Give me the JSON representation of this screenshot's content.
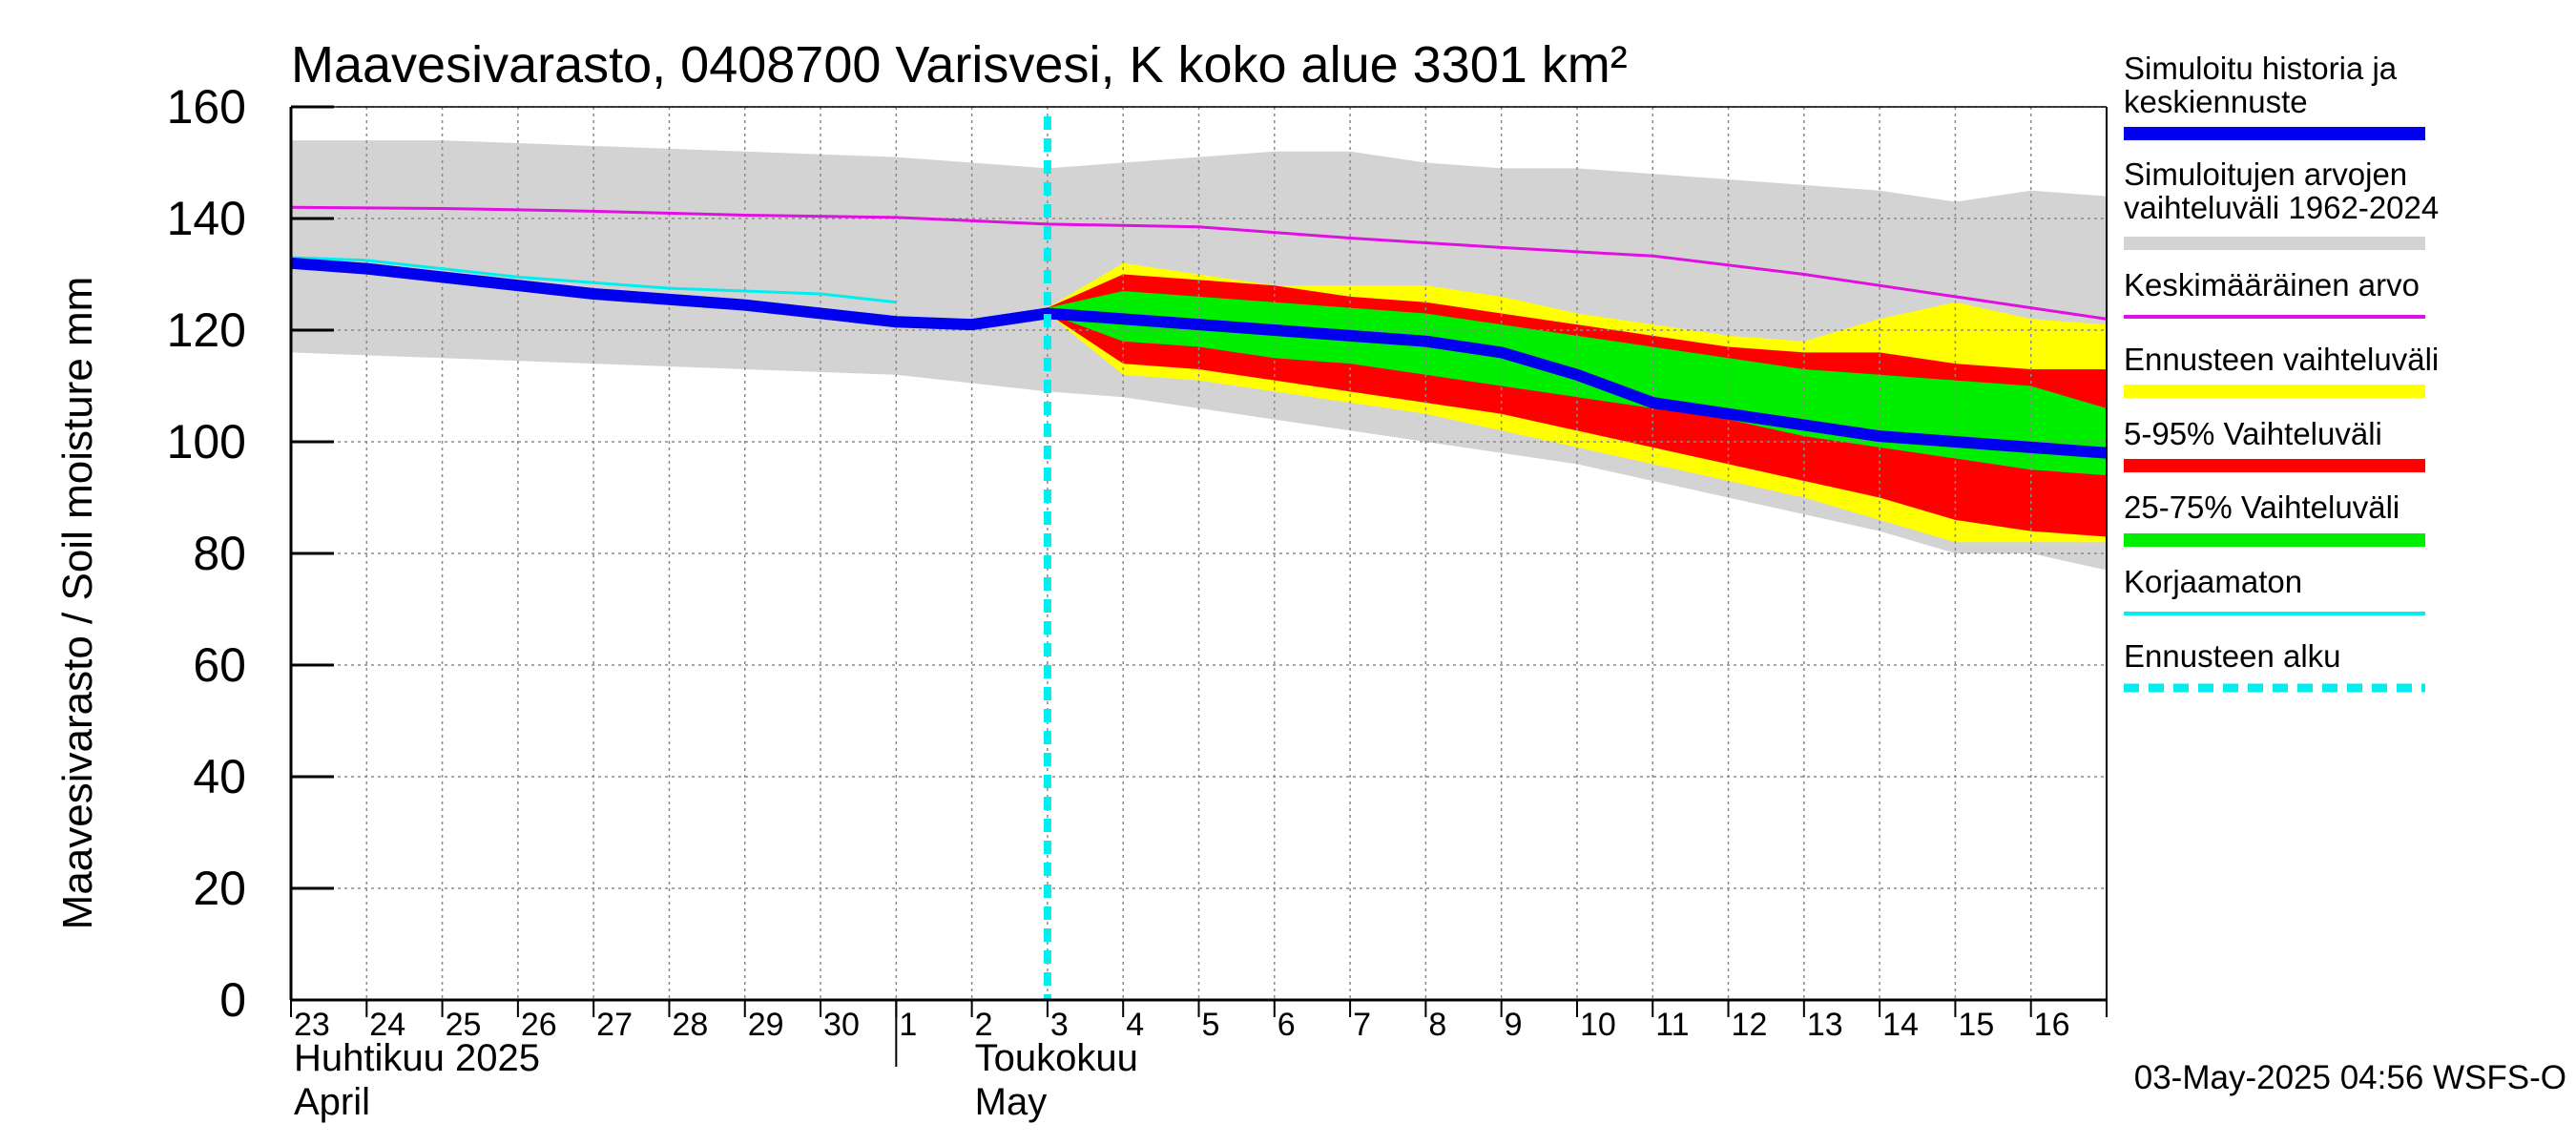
{
  "chart_data": {
    "type": "area",
    "title": "Maavesivarasto, 0408700 Varisvesi, K koko alue 3301 km²",
    "ylabel": "Maavesivarasto / Soil moisture   mm",
    "ylim": [
      0,
      160
    ],
    "yticks": [
      0,
      20,
      40,
      60,
      80,
      100,
      120,
      140,
      160
    ],
    "xlim": [
      0,
      24
    ],
    "day_labels": [
      "23",
      "24",
      "25",
      "26",
      "27",
      "28",
      "29",
      "30",
      "1",
      "2",
      "3",
      "4",
      "5",
      "6",
      "7",
      "8",
      "9",
      "10",
      "11",
      "12",
      "13",
      "14",
      "15",
      "16"
    ],
    "month_labels": [
      {
        "fi": "Huhtikuu  2025",
        "en": "April",
        "at_day": 0
      },
      {
        "fi": "Toukokuu",
        "en": "May",
        "at_day": 9
      }
    ],
    "month_divider_at": 8,
    "forecast_start": 10,
    "timestamp": "03-May-2025 04:56 WSFS-O",
    "legend": [
      {
        "label": "Simuloitu historia ja keskiennuste",
        "color": "#0000ee",
        "style": "thick"
      },
      {
        "label": "Simuloitujen arvojen vaihteluväli 1962-2024",
        "color": "#d3d3d3",
        "style": "thick"
      },
      {
        "label": "Keskimääräinen arvo",
        "color": "#e010e0",
        "style": "thin"
      },
      {
        "label": "Ennusteen vaihteluväli",
        "color": "#ffff00",
        "style": "thick"
      },
      {
        "label": "5-95% Vaihteluväli",
        "color": "#ff0000",
        "style": "thick"
      },
      {
        "label": "25-75% Vaihteluväli",
        "color": "#00ee00",
        "style": "thick"
      },
      {
        "label": "Korjaamaton",
        "color": "#00eeee",
        "style": "thin"
      },
      {
        "label": "Ennusteen alku",
        "color": "#00eeee",
        "style": "dashed"
      }
    ],
    "series": [
      {
        "name": "hist_range",
        "x": [
          0,
          2,
          4,
          6,
          8,
          10,
          11,
          12,
          13,
          14,
          15,
          16,
          17,
          18,
          19,
          20,
          21,
          22,
          23,
          24
        ],
        "upper": [
          154,
          154,
          153,
          152,
          151,
          149,
          150,
          151,
          152,
          152,
          150,
          149,
          149,
          148,
          147,
          146,
          145,
          143,
          145,
          144
        ],
        "lower": [
          116,
          115,
          114,
          113,
          112,
          109,
          108,
          106,
          104,
          102,
          100,
          98,
          96,
          93,
          90,
          87,
          84,
          80,
          80,
          77
        ]
      },
      {
        "name": "forecast_range",
        "x": [
          10,
          11,
          12,
          13,
          14,
          15,
          16,
          17,
          18,
          19,
          20,
          21,
          22,
          23,
          24
        ],
        "upper": [
          124,
          132,
          130,
          128,
          128,
          128,
          126,
          123,
          121,
          119,
          118,
          122,
          125,
          122,
          121
        ],
        "lower": [
          123,
          112,
          111,
          109,
          107,
          105,
          102,
          99,
          96,
          93,
          90,
          86,
          82,
          82,
          82
        ]
      },
      {
        "name": "p5_95",
        "x": [
          10,
          11,
          12,
          13,
          14,
          15,
          16,
          17,
          18,
          19,
          20,
          21,
          22,
          23,
          24
        ],
        "upper": [
          124,
          130,
          129,
          128,
          126,
          125,
          123,
          121,
          119,
          117,
          116,
          116,
          114,
          113,
          113
        ],
        "lower": [
          123,
          114,
          113,
          111,
          109,
          107,
          105,
          102,
          99,
          96,
          93,
          90,
          86,
          84,
          83
        ]
      },
      {
        "name": "p25_75",
        "x": [
          10,
          11,
          12,
          13,
          14,
          15,
          16,
          17,
          18,
          19,
          20,
          21,
          22,
          23,
          24
        ],
        "upper": [
          124,
          127,
          126,
          125,
          124,
          123,
          121,
          119,
          117,
          115,
          113,
          112,
          111,
          110,
          106
        ]
      },
      {
        "name": "p25_75_lower",
        "x": [
          10,
          11,
          12,
          13,
          14,
          15,
          16,
          17,
          18,
          19,
          20,
          21,
          22,
          23,
          24
        ],
        "lower": [
          123,
          118,
          117,
          115,
          114,
          112,
          110,
          108,
          106,
          104,
          101,
          99,
          97,
          95,
          94
        ]
      },
      {
        "name": "mean",
        "x": [
          0,
          2,
          4,
          6,
          8,
          10,
          12,
          14,
          16,
          18,
          20,
          22,
          24
        ],
        "values": [
          142,
          141.8,
          141.3,
          140.6,
          140.2,
          139,
          138.5,
          136.5,
          134.8,
          133.3,
          130,
          126,
          122
        ]
      },
      {
        "name": "uncorrected",
        "x": [
          0,
          1,
          2,
          3,
          4,
          5,
          6,
          7,
          8
        ],
        "values": [
          133,
          132.5,
          131,
          129.5,
          128.5,
          127.5,
          127,
          126.5,
          125
        ]
      },
      {
        "name": "simulated",
        "x": [
          0,
          1,
          2,
          3,
          4,
          5,
          6,
          7,
          8,
          9,
          10,
          11,
          12,
          13,
          14,
          15,
          16,
          17,
          18,
          19,
          20,
          21,
          22,
          23,
          24
        ],
        "values": [
          132,
          131,
          129.5,
          128,
          126.5,
          125.5,
          124.5,
          123,
          121.5,
          121,
          123,
          122,
          121,
          120,
          119,
          118,
          116,
          112,
          107,
          105,
          103,
          101,
          100,
          99,
          98
        ]
      }
    ]
  }
}
